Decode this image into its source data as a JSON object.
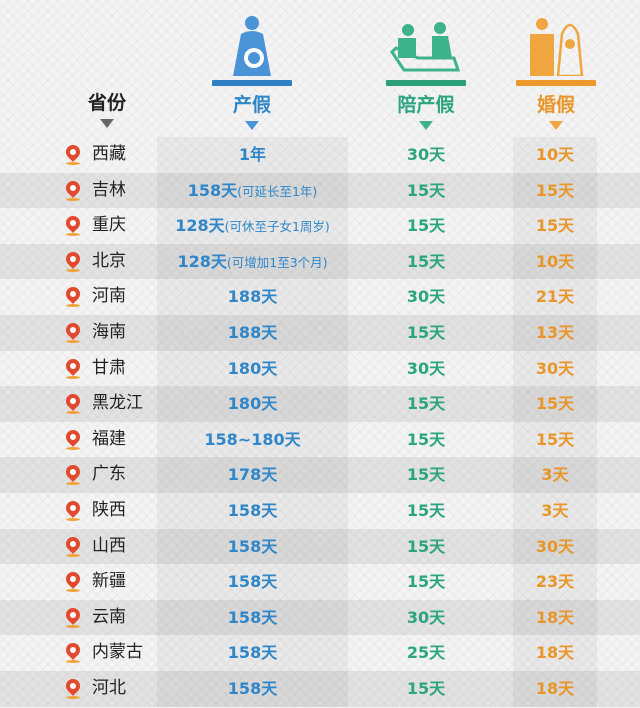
{
  "header": {
    "province": "省份",
    "maternity": "产假",
    "paternity": "陪产假",
    "marriage": "婚假"
  },
  "colors": {
    "maternity": "#2f86c8",
    "paternity": "#2aa57f",
    "marriage": "#e8962a",
    "pin": "#e2492e"
  },
  "icons": {
    "maternity": "pregnant-woman-icon",
    "paternity": "father-caring-icon",
    "marriage": "bride-groom-icon",
    "row": "location-pin-icon"
  },
  "rows": [
    {
      "province": "西藏",
      "maternity": "1年",
      "maternity_note": "",
      "paternity": "30天",
      "marriage": "10天"
    },
    {
      "province": "吉林",
      "maternity": "158天",
      "maternity_note": "(可延长至1年)",
      "paternity": "15天",
      "marriage": "15天"
    },
    {
      "province": "重庆",
      "maternity": "128天",
      "maternity_note": "(可休至子女1周岁)",
      "paternity": "15天",
      "marriage": "15天"
    },
    {
      "province": "北京",
      "maternity": "128天",
      "maternity_note": "(可增加1至3个月)",
      "paternity": "15天",
      "marriage": "10天"
    },
    {
      "province": "河南",
      "maternity": "188天",
      "maternity_note": "",
      "paternity": "30天",
      "marriage": "21天"
    },
    {
      "province": "海南",
      "maternity": "188天",
      "maternity_note": "",
      "paternity": "15天",
      "marriage": "13天"
    },
    {
      "province": "甘肃",
      "maternity": "180天",
      "maternity_note": "",
      "paternity": "30天",
      "marriage": "30天"
    },
    {
      "province": "黑龙江",
      "maternity": "180天",
      "maternity_note": "",
      "paternity": "15天",
      "marriage": "15天"
    },
    {
      "province": "福建",
      "maternity": "158~180天",
      "maternity_note": "",
      "paternity": "15天",
      "marriage": "15天"
    },
    {
      "province": "广东",
      "maternity": "178天",
      "maternity_note": "",
      "paternity": "15天",
      "marriage": "3天"
    },
    {
      "province": "陕西",
      "maternity": "158天",
      "maternity_note": "",
      "paternity": "15天",
      "marriage": "3天"
    },
    {
      "province": "山西",
      "maternity": "158天",
      "maternity_note": "",
      "paternity": "15天",
      "marriage": "30天"
    },
    {
      "province": "新疆",
      "maternity": "158天",
      "maternity_note": "",
      "paternity": "15天",
      "marriage": "23天"
    },
    {
      "province": "云南",
      "maternity": "158天",
      "maternity_note": "",
      "paternity": "30天",
      "marriage": "18天"
    },
    {
      "province": "内蒙古",
      "maternity": "158天",
      "maternity_note": "",
      "paternity": "25天",
      "marriage": "18天"
    },
    {
      "province": "河北",
      "maternity": "158天",
      "maternity_note": "",
      "paternity": "15天",
      "marriage": "18天"
    }
  ]
}
